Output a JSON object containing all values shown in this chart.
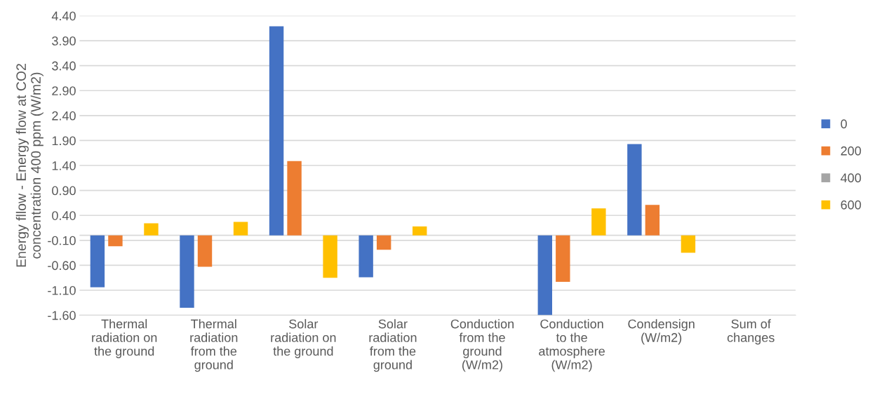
{
  "chart_data": {
    "type": "bar",
    "ylabel": "Energy fllow - Energy flow at CO2 concentration 400 ppm (W/m2)",
    "categories": [
      "Thermal radiation on the ground",
      "Thermal radiation from the ground",
      "Solar radiation on the ground",
      "Solar radiation from the ground",
      "Conduction from the ground (W/m2)",
      "Conduction to the atmosphere (W/m2)",
      "Condensign (W/m2)",
      "Sum of changes"
    ],
    "series": [
      {
        "name": "0",
        "color": "#4472c4",
        "values": [
          -1.04,
          -1.45,
          4.19,
          -0.84,
          0,
          -1.6,
          1.83,
          0
        ]
      },
      {
        "name": "200",
        "color": "#ed7d31",
        "values": [
          -0.22,
          -0.63,
          1.49,
          -0.29,
          0,
          -0.93,
          0.61,
          0
        ]
      },
      {
        "name": "400",
        "color": "#a5a5a5",
        "values": [
          0,
          0,
          0,
          0,
          0,
          0,
          0,
          0
        ]
      },
      {
        "name": "600",
        "color": "#ffc000",
        "values": [
          0.24,
          0.27,
          -0.85,
          0.18,
          0,
          0.54,
          -0.35,
          0
        ]
      }
    ],
    "ylim": [
      -1.6,
      4.4
    ],
    "yticks": [
      {
        "value": -1.6,
        "label": "-1.60"
      },
      {
        "value": -1.1,
        "label": "-1.10"
      },
      {
        "value": -0.6,
        "label": "-0.60"
      },
      {
        "value": -0.1,
        "label": "-0.10"
      },
      {
        "value": 0.4,
        "label": "0.40"
      },
      {
        "value": 0.9,
        "label": "0.90"
      },
      {
        "value": 1.4,
        "label": "1.40"
      },
      {
        "value": 1.9,
        "label": "1.90"
      },
      {
        "value": 2.4,
        "label": "2.40"
      },
      {
        "value": 2.9,
        "label": "2.90"
      },
      {
        "value": 3.4,
        "label": "3.40"
      },
      {
        "value": 3.9,
        "label": "3.90"
      },
      {
        "value": 4.4,
        "label": "4.40"
      }
    ],
    "grid": "y",
    "legend": "right"
  }
}
